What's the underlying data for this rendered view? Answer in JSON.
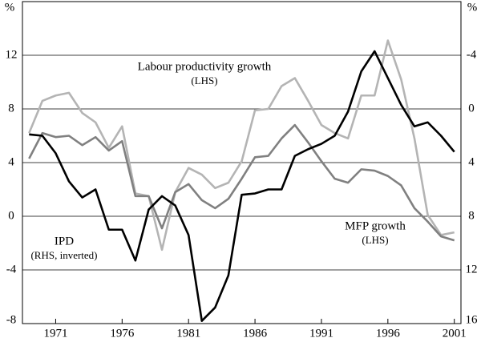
{
  "chart_data": {
    "type": "line",
    "y_label": "%",
    "y2_label": "%",
    "xlim": [
      1968.5,
      2001.5
    ],
    "xticks": [
      1971,
      1976,
      1981,
      1986,
      1991,
      1996,
      2001
    ],
    "ylim": [
      -8,
      16
    ],
    "yticks": [
      -8,
      -4,
      0,
      4,
      8,
      12
    ],
    "y2lim": [
      16,
      -8
    ],
    "y2ticks": [
      16,
      12,
      8,
      4,
      0,
      -4
    ],
    "grid": true,
    "x": [
      1969,
      1970,
      1971,
      1972,
      1973,
      1974,
      1975,
      1976,
      1977,
      1978,
      1979,
      1980,
      1981,
      1982,
      1983,
      1984,
      1985,
      1986,
      1987,
      1988,
      1989,
      1990,
      1991,
      1992,
      1993,
      1994,
      1995,
      1996,
      1997,
      1998,
      1999,
      2000,
      2001
    ],
    "series": [
      {
        "name": "Labour productivity growth",
        "color": "#b4b4b4",
        "values": [
          6.2,
          8.6,
          9.0,
          9.2,
          7.7,
          7.0,
          5.1,
          6.7,
          1.7,
          1.5,
          -2.5,
          1.8,
          3.6,
          3.1,
          2.1,
          2.5,
          4.1,
          7.9,
          8.0,
          9.7,
          10.3,
          8.6,
          6.8,
          6.2,
          5.8,
          9.0,
          9.0,
          13.1,
          10.2,
          5.8,
          0.1,
          -1.4,
          -1.2
        ]
      },
      {
        "name": "MFP growth",
        "color": "#808080",
        "values": [
          4.3,
          6.2,
          5.9,
          6.0,
          5.3,
          5.9,
          4.9,
          5.6,
          1.5,
          1.5,
          -0.9,
          1.8,
          2.4,
          1.2,
          0.6,
          1.3,
          2.8,
          4.4,
          4.5,
          5.8,
          6.8,
          5.5,
          4.1,
          2.8,
          2.5,
          3.5,
          3.4,
          3.0,
          2.3,
          0.6,
          -0.4,
          -1.5,
          -1.8
        ]
      },
      {
        "name": "IPD",
        "color": "#000000",
        "axis": "y2",
        "values": [
          1.9,
          2.0,
          3.3,
          5.4,
          6.6,
          6.0,
          9.0,
          9.0,
          11.3,
          7.5,
          6.5,
          7.2,
          9.4,
          15.8,
          14.8,
          12.4,
          6.4,
          6.3,
          6.0,
          6.0,
          3.5,
          3.0,
          2.6,
          2.0,
          0.2,
          -2.8,
          -4.3,
          -2.3,
          -0.3,
          1.3,
          1.0,
          2.0,
          3.2
        ]
      }
    ],
    "annotations": [
      {
        "text": "Labour productivity growth"
      },
      {
        "text": "(LHS)"
      },
      {
        "text": "MFP growth"
      },
      {
        "text": "(LHS)"
      },
      {
        "text": "IPD"
      },
      {
        "text": "(RHS, inverted)"
      }
    ]
  }
}
